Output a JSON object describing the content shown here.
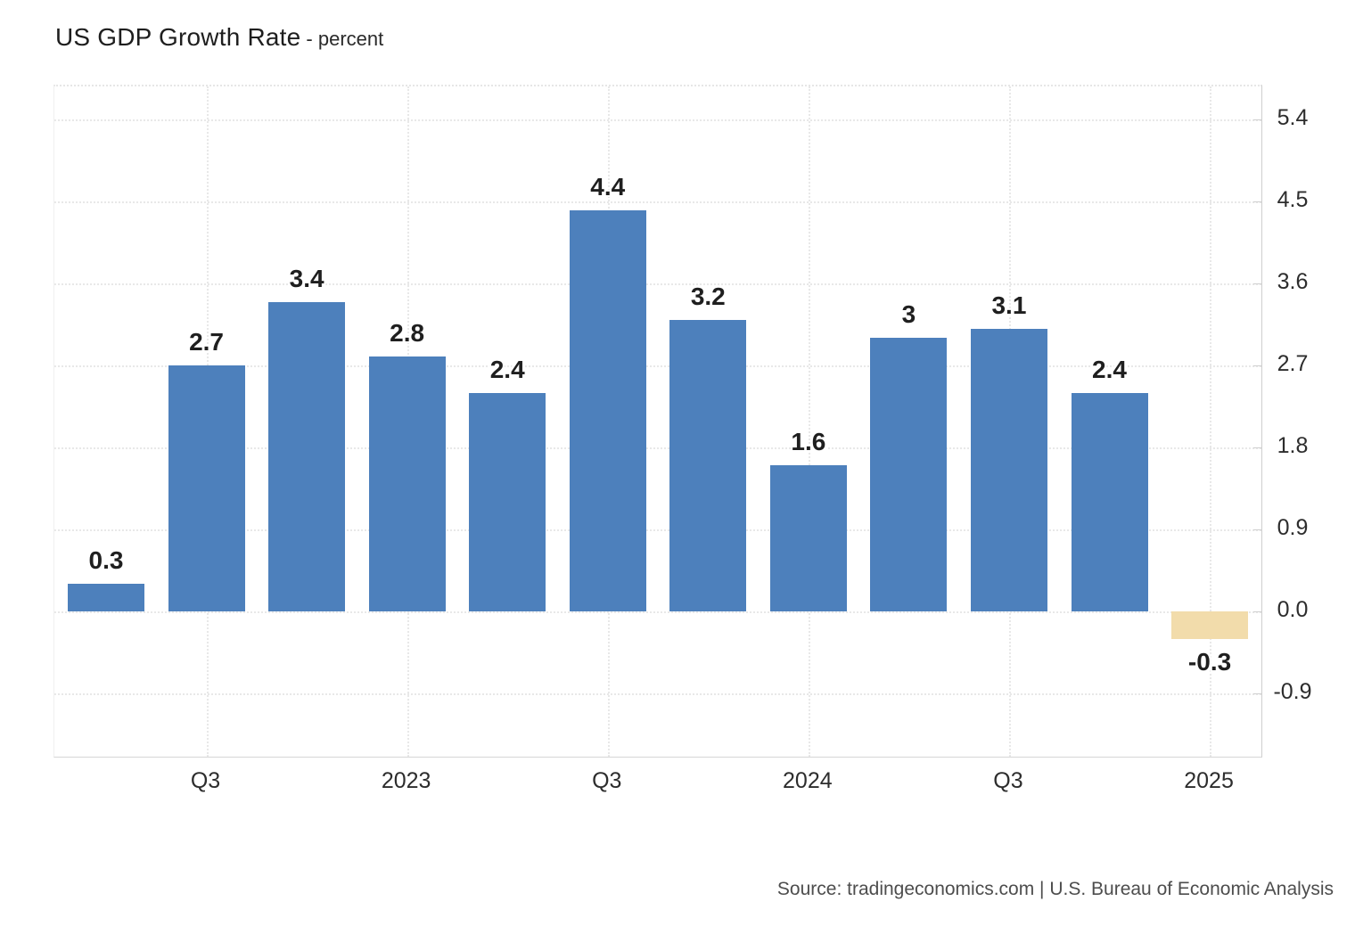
{
  "header": {
    "title": "US GDP Growth Rate",
    "subtitle": "- percent"
  },
  "footer": {
    "source": "Source: tradingeconomics.com | U.S. Bureau of Economic Analysis"
  },
  "colors": {
    "bar_positive": "#4d80bc",
    "bar_negative": "#f2dcab",
    "grid": "#e8e8e8",
    "axis_line": "#cfcfcf",
    "value_label": "#1f1f1f",
    "tick_text": "#2d2d2d",
    "source_text": "#4d4d4d"
  },
  "chart_data": {
    "type": "bar",
    "title": "US GDP Growth Rate",
    "unit_label": "percent",
    "values": [
      0.3,
      2.7,
      3.4,
      2.8,
      2.4,
      4.4,
      3.2,
      1.6,
      3,
      3.1,
      2.4,
      -0.3
    ],
    "bar_labels": [
      "0.3",
      "2.7",
      "3.4",
      "2.8",
      "2.4",
      "4.4",
      "3.2",
      "1.6",
      "3",
      "3.1",
      "2.4",
      "-0.3"
    ],
    "x_axis": {
      "tick_labels": [
        "Q3",
        "2023",
        "Q3",
        "2024",
        "Q3",
        "2025"
      ],
      "tick_bar_indices": [
        1,
        3,
        5,
        7,
        9,
        11
      ]
    },
    "y_axis": {
      "side": "right",
      "tick_labels": [
        "5.4",
        "4.5",
        "3.6",
        "2.7",
        "1.8",
        "0.9",
        "0.0",
        "-0.9"
      ],
      "tick_values": [
        5.4,
        4.5,
        3.6,
        2.7,
        1.8,
        0.9,
        0,
        -0.9
      ],
      "ylim": [
        -1.6,
        5.75
      ]
    },
    "grid": "dotted",
    "legend": null
  }
}
